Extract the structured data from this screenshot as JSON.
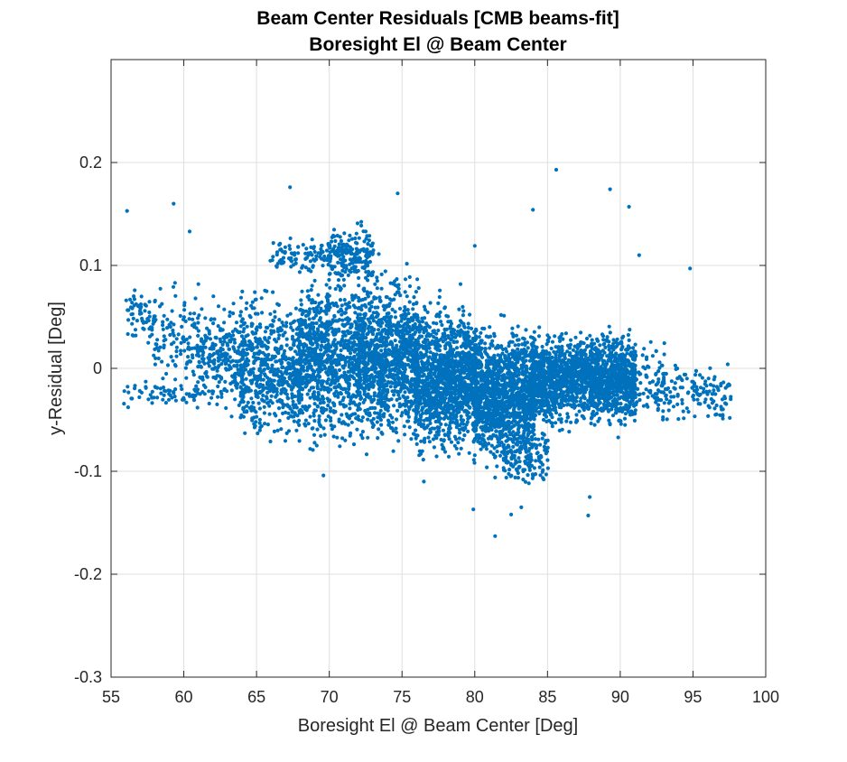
{
  "chart_data": {
    "type": "scatter",
    "title": "Beam Center Residuals [CMB beams-fit]",
    "subtitle": "Boresight El @ Beam Center",
    "xlabel": "Boresight El @ Beam Center [Deg]",
    "ylabel": "y-Residual [Deg]",
    "xlim": [
      55,
      100
    ],
    "ylim": [
      -0.3,
      0.3
    ],
    "xticks": [
      55,
      60,
      65,
      70,
      75,
      80,
      85,
      90,
      95,
      100
    ],
    "xtick_labels": [
      "55",
      "60",
      "65",
      "70",
      "75",
      "80",
      "85",
      "90",
      "95",
      "100"
    ],
    "yticks": [
      -0.3,
      -0.2,
      -0.1,
      0,
      0.1,
      0.2
    ],
    "ytick_labels": [
      "-0.3",
      "-0.2",
      "-0.1",
      "0",
      "0.1",
      "0.2"
    ],
    "grid": true,
    "marker_color": "#0072BD",
    "series": [
      {
        "clusters": [
          {
            "x": [
              56,
              58
            ],
            "y": [
              0.02,
              0.08
            ],
            "n": 60
          },
          {
            "x": [
              58,
              61
            ],
            "y": [
              -0.03,
              0.09
            ],
            "n": 120
          },
          {
            "x": [
              56,
              61
            ],
            "y": [
              -0.04,
              -0.01
            ],
            "n": 60
          },
          {
            "x": [
              61,
              64
            ],
            "y": [
              -0.05,
              0.07
            ],
            "n": 260
          },
          {
            "x": [
              64,
              68
            ],
            "y": [
              -0.08,
              0.08
            ],
            "n": 600
          },
          {
            "x": [
              68,
              72
            ],
            "y": [
              -0.08,
              0.1
            ],
            "n": 900
          },
          {
            "x": [
              70,
              73
            ],
            "y": [
              0.08,
              0.14
            ],
            "n": 200
          },
          {
            "x": [
              66,
              70
            ],
            "y": [
              0.09,
              0.13
            ],
            "n": 90
          },
          {
            "x": [
              72,
              76
            ],
            "y": [
              -0.08,
              0.1
            ],
            "n": 1100
          },
          {
            "x": [
              76,
              80
            ],
            "y": [
              -0.09,
              0.07
            ],
            "n": 1300
          },
          {
            "x": [
              80,
              84
            ],
            "y": [
              -0.1,
              0.05
            ],
            "n": 1300
          },
          {
            "x": [
              82,
              85
            ],
            "y": [
              -0.12,
              -0.05
            ],
            "n": 140
          },
          {
            "x": [
              84,
              88
            ],
            "y": [
              -0.06,
              0.04
            ],
            "n": 1000
          },
          {
            "x": [
              88,
              91
            ],
            "y": [
              -0.06,
              0.04
            ],
            "n": 800
          },
          {
            "x": [
              91,
              93
            ],
            "y": [
              -0.05,
              0.03
            ],
            "n": 80
          },
          {
            "x": [
              93,
              97.5
            ],
            "y": [
              -0.06,
              0.01
            ],
            "n": 140
          }
        ],
        "outliers": [
          {
            "x": 56.1,
            "y": 0.153
          },
          {
            "x": 59.3,
            "y": 0.16
          },
          {
            "x": 67.3,
            "y": 0.176
          },
          {
            "x": 74.7,
            "y": 0.17
          },
          {
            "x": 85.6,
            "y": 0.193
          },
          {
            "x": 89.3,
            "y": 0.174
          },
          {
            "x": 90.6,
            "y": 0.157
          },
          {
            "x": 84,
            "y": 0.154
          },
          {
            "x": 80,
            "y": 0.119
          },
          {
            "x": 91.3,
            "y": 0.11
          },
          {
            "x": 94.8,
            "y": 0.097
          },
          {
            "x": 81.4,
            "y": -0.163
          },
          {
            "x": 79.9,
            "y": -0.137
          },
          {
            "x": 82.5,
            "y": -0.142
          },
          {
            "x": 87.8,
            "y": -0.143
          },
          {
            "x": 87.9,
            "y": -0.125
          },
          {
            "x": 69.6,
            "y": -0.104
          },
          {
            "x": 76.5,
            "y": -0.11
          },
          {
            "x": 83.2,
            "y": -0.135
          },
          {
            "x": 60.4,
            "y": 0.133
          }
        ]
      }
    ]
  }
}
